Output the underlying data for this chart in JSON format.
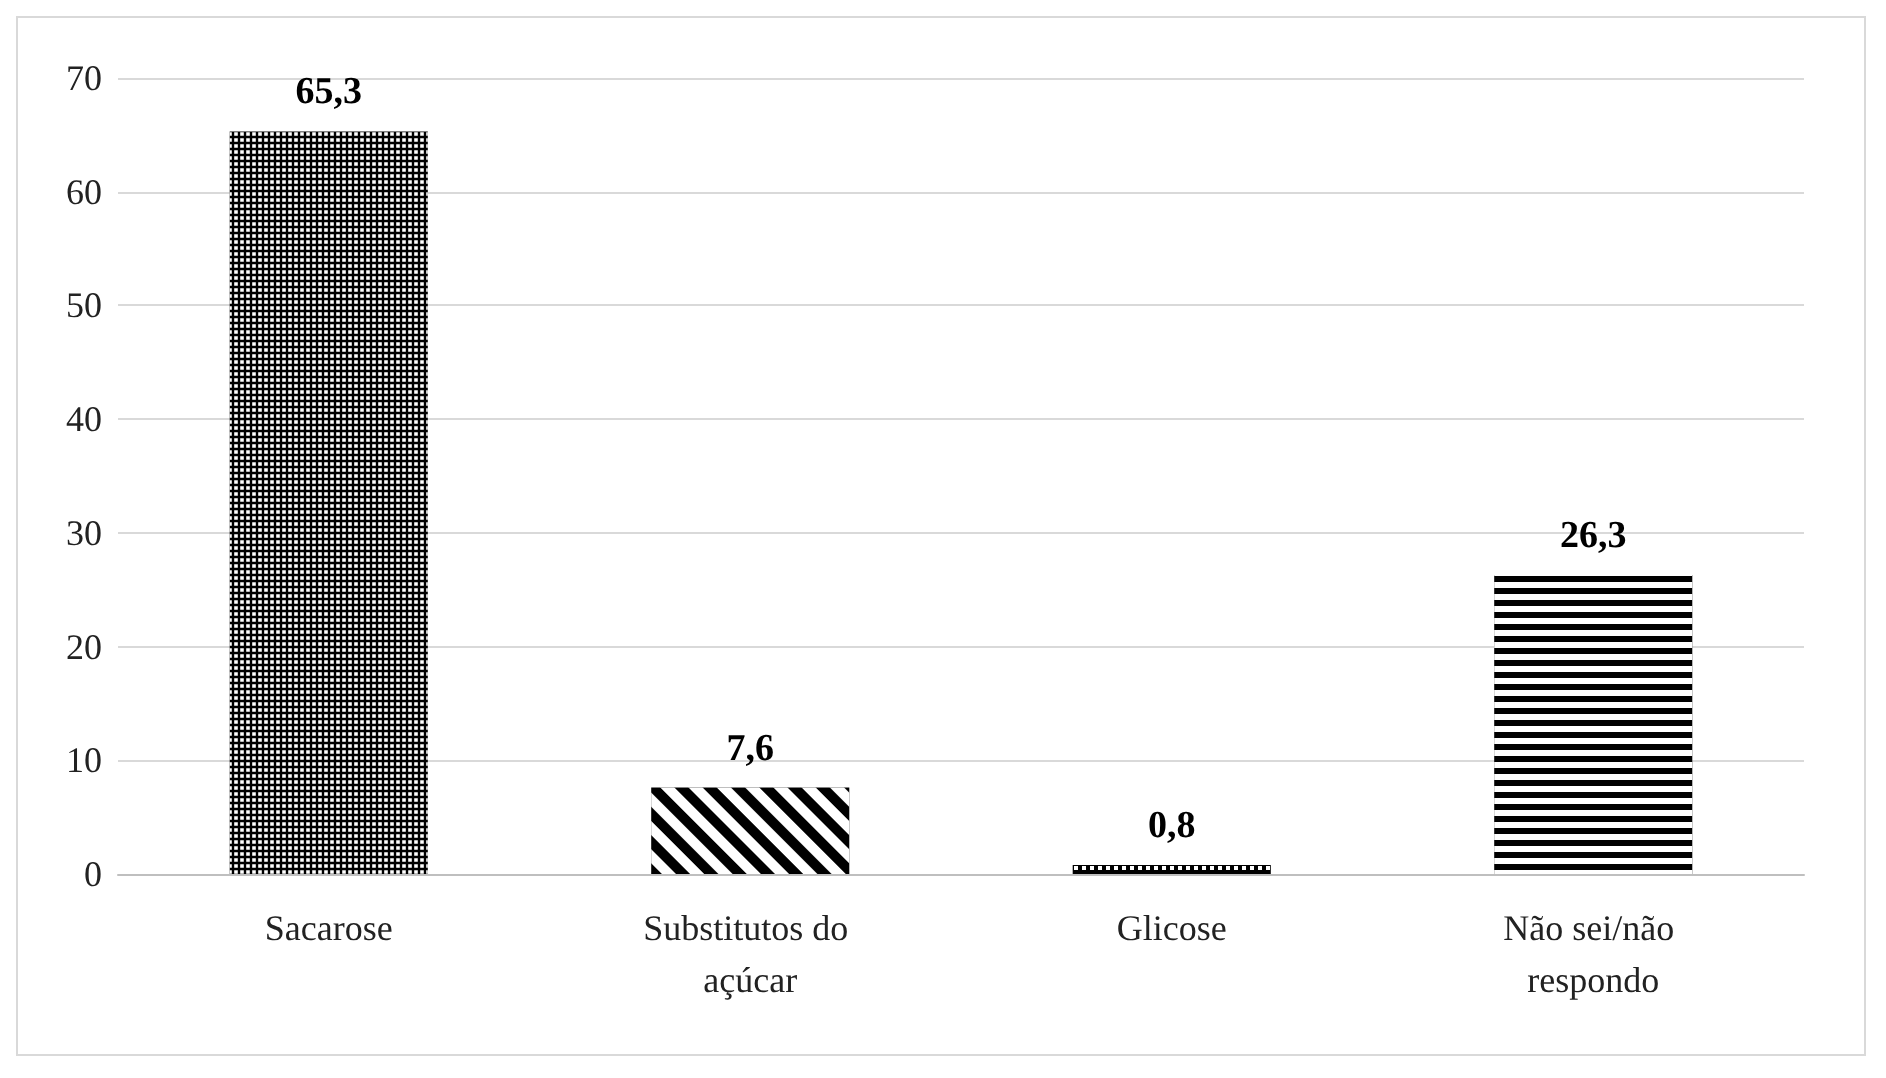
{
  "chart_data": {
    "type": "bar",
    "categories": [
      "Sacarose",
      "Substitutos do açúcar",
      "Glicose",
      "Não sei/não respondo"
    ],
    "values": [
      65.3,
      7.6,
      0.8,
      26.3
    ],
    "value_labels": [
      "65,3",
      "7,6",
      "0,8",
      "26,3"
    ],
    "colors": [
      "#000000",
      "#000000",
      "#000000",
      "#000000"
    ],
    "ylim": [
      0,
      70
    ],
    "yticks": [
      0,
      10,
      20,
      30,
      40,
      50,
      60,
      70
    ],
    "grid": "y"
  }
}
